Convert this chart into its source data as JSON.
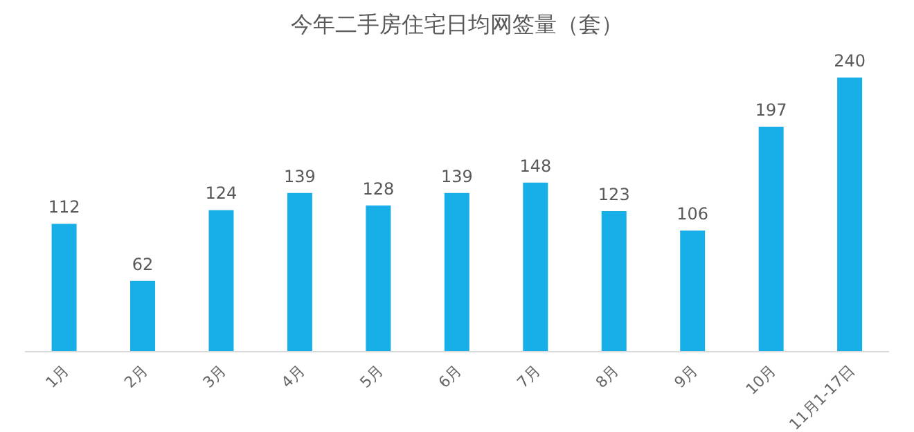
{
  "chart_data": {
    "type": "bar",
    "title": "今年二手房住宅日均网签量（套）",
    "categories": [
      "1月",
      "2月",
      "3月",
      "4月",
      "5月",
      "6月",
      "7月",
      "8月",
      "9月",
      "10月",
      "11月1-17日"
    ],
    "values": [
      112,
      62,
      124,
      139,
      128,
      139,
      148,
      123,
      106,
      197,
      240
    ],
    "color": "#18aee8",
    "data_labels": true
  }
}
